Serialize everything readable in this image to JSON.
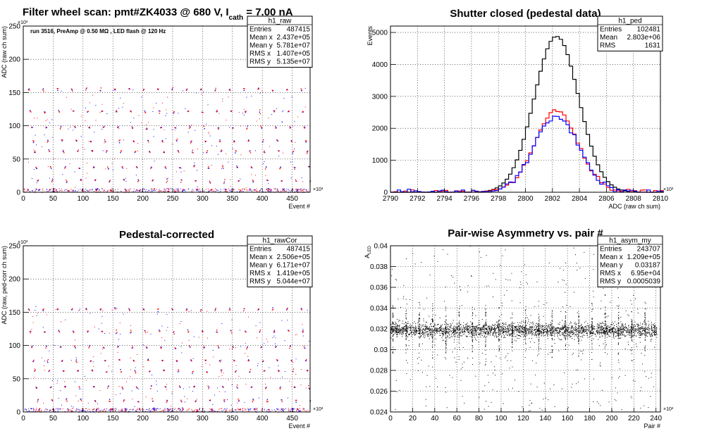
{
  "page": {
    "super_title_parts": {
      "main": "Filter wheel scan: pmt#ZK4033 @   680 V, I",
      "sub": "cath",
      "tail": "  = 7.00 nA"
    }
  },
  "colors": {
    "red": "#ff0000",
    "blue": "#0000ff",
    "black": "#000000",
    "grid": "#000000"
  },
  "chart_data": [
    {
      "id": "raw",
      "type": "scatter",
      "title": "",
      "xlabel": "Event #",
      "ylabel": "ADC (raw ch sum)",
      "xlim": [
        0,
        480000
      ],
      "ylim": [
        0,
        250000
      ],
      "x_ticks": [
        0,
        50,
        100,
        150,
        200,
        250,
        300,
        350,
        400,
        450
      ],
      "x_tick_labels": [
        "0",
        "50",
        "100",
        "150",
        "200",
        "250",
        "300",
        "350",
        "400",
        "450"
      ],
      "x_exponent": "×10³",
      "y_ticks": [
        0,
        50,
        100,
        150,
        200,
        250
      ],
      "y_tick_labels": [
        "0",
        "50",
        "100",
        "150",
        "200",
        "250"
      ],
      "y_exponent": "×10³",
      "annotation": "run 3516, PreAmp @ 0.50 MΩ , LED flash @  120 Hz",
      "stats": {
        "name": "h1_raw",
        "rows": [
          [
            "Entries",
            "487415"
          ],
          [
            "Mean x",
            "2.437e+05"
          ],
          [
            "Mean y",
            "5.781e+07"
          ],
          [
            "RMS x",
            "1.407e+05"
          ],
          [
            "RMS y",
            "5.135e+07"
          ]
        ]
      },
      "levels_k": [
        155,
        122,
        98,
        78,
        62,
        38,
        18,
        4
      ],
      "cycle_period_k": 24,
      "cycle_count": 20
    },
    {
      "id": "ped",
      "type": "line",
      "title": "Shutter closed (pedestal data)",
      "xlabel": "ADC (raw ch sum)",
      "ylabel": "Events",
      "xlim": [
        2790000,
        2810000
      ],
      "ylim": [
        0,
        5200
      ],
      "x_ticks": [
        2790,
        2792,
        2794,
        2796,
        2798,
        2800,
        2802,
        2804,
        2806,
        2808,
        2810
      ],
      "x_tick_labels": [
        "2790",
        "2792",
        "2794",
        "2796",
        "2798",
        "2800",
        "2802",
        "2804",
        "2806",
        "2808",
        "2810"
      ],
      "x_exponent": "×10³",
      "y_ticks": [
        0,
        1000,
        2000,
        3000,
        4000,
        5000
      ],
      "y_tick_labels": [
        "0",
        "1000",
        "2000",
        "3000",
        "4000",
        "5000"
      ],
      "stats": {
        "name": "h1_ped",
        "rows": [
          [
            "Entries",
            "102481"
          ],
          [
            "Mean",
            "2.803e+06"
          ],
          [
            "RMS",
            "1631"
          ]
        ]
      },
      "series": [
        {
          "name": "",
          "color": "#000000",
          "mean": 2802.3,
          "sigma": 1.65,
          "peak": 4880
        },
        {
          "name": "",
          "color": "#ff0000",
          "mean": 2802.3,
          "sigma": 1.6,
          "peak": 2550
        },
        {
          "name": "",
          "color": "#0000ff",
          "mean": 2802.3,
          "sigma": 1.65,
          "peak": 2380
        }
      ]
    },
    {
      "id": "rawCor",
      "type": "scatter",
      "title": "Pedestal-corrected",
      "xlabel": "Event #",
      "ylabel": "ADC (raw, ped-corr ch sum)",
      "xlim": [
        0,
        480000
      ],
      "ylim": [
        0,
        250000
      ],
      "x_ticks": [
        0,
        50,
        100,
        150,
        200,
        250,
        300,
        350,
        400,
        450
      ],
      "x_tick_labels": [
        "0",
        "50",
        "100",
        "150",
        "200",
        "250",
        "300",
        "350",
        "400",
        "450"
      ],
      "x_exponent": "×10³",
      "y_ticks": [
        0,
        50,
        100,
        150,
        200,
        250
      ],
      "y_tick_labels": [
        "0",
        "50",
        "100",
        "150",
        "200",
        "250"
      ],
      "y_exponent": "×10³",
      "stats": {
        "name": "h1_rawCor",
        "rows": [
          [
            "Entries",
            "487415"
          ],
          [
            "Mean x",
            "2.506e+05"
          ],
          [
            "Mean y",
            "6.171e+07"
          ],
          [
            "RMS x",
            "1.419e+05"
          ],
          [
            "RMS y",
            "5.044e+07"
          ]
        ]
      },
      "levels_k": [
        155,
        122,
        98,
        78,
        62,
        38,
        18,
        4
      ],
      "cycle_period_k": 24,
      "cycle_count": 20
    },
    {
      "id": "asym",
      "type": "scatter",
      "title": "Pair-wise Asymmetry vs. pair #",
      "xlabel": "Pair #",
      "ylabel_main": "A",
      "ylabel_sub": "LED",
      "xlim": [
        0,
        244000
      ],
      "ylim": [
        0.024,
        0.04
      ],
      "x_ticks": [
        0,
        20,
        40,
        60,
        80,
        100,
        120,
        140,
        160,
        180,
        200,
        220,
        240
      ],
      "x_tick_labels": [
        "0",
        "20",
        "40",
        "60",
        "80",
        "100",
        "120",
        "140",
        "160",
        "180",
        "200",
        "220",
        "240"
      ],
      "x_exponent": "×10³",
      "y_ticks": [
        0.024,
        0.026,
        0.028,
        0.03,
        0.032,
        0.034,
        0.036,
        0.038,
        0.04
      ],
      "y_tick_labels": [
        "0.024",
        "0.026",
        "0.028",
        "0.03",
        "0.032",
        "0.034",
        "0.036",
        "0.038",
        "0.04"
      ],
      "stats": {
        "name": "h1_asym_my",
        "rows": [
          [
            "Entries",
            "243707"
          ],
          [
            "Mean x",
            "1.209e+05"
          ],
          [
            "Mean y",
            "0.03187"
          ],
          [
            "RMS x",
            "6.95e+04"
          ],
          [
            "RMS y",
            "0.0005039"
          ]
        ]
      },
      "band_center": 0.0319,
      "band_halfwidth": 0.0006,
      "spike_period_k": 12,
      "spike_count": 20
    }
  ]
}
